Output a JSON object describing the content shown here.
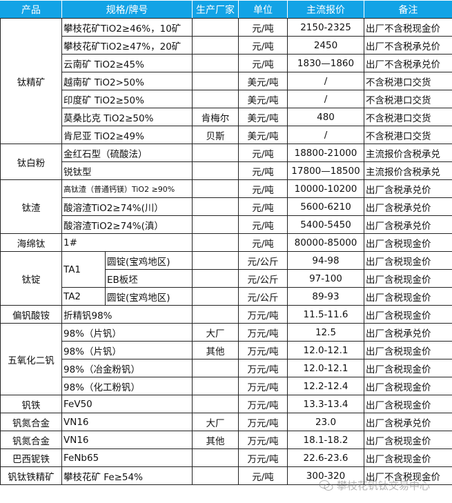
{
  "header": {
    "product": "产品",
    "spec": "规格/牌号",
    "maker": "生产厂家",
    "unit": "单位",
    "price": "主流报价",
    "note": "备注"
  },
  "colors": {
    "header_bg": "#12a3e6",
    "header_text": "#ffffff"
  },
  "groups": [
    {
      "product": "钛精矿",
      "items": [
        {
          "spec": "攀枝花矿TiO2≥46%，10矿",
          "maker": "",
          "unit": "元/吨",
          "price": "2150-2325",
          "note": "出厂不含税现金价"
        },
        {
          "spec": "攀枝花矿TiO2≥47%，20矿",
          "maker": "",
          "unit": "元/吨",
          "price": "2450",
          "note": "出厂不含税承兑价"
        },
        {
          "spec": "云南矿 TiO2≥45%",
          "maker": "",
          "unit": "元/吨",
          "price": "1830—1860",
          "note": "出厂不含税承兑价"
        },
        {
          "spec": "越南矿 TiO2>50%",
          "maker": "",
          "unit": "美元/吨",
          "price": "/",
          "note": "不含税港口交货"
        },
        {
          "spec": "印度矿 TiO2≥50%",
          "maker": "",
          "unit": "美元/吨",
          "price": "/",
          "note": "不含税港口交货"
        },
        {
          "spec": "莫桑比克 TiO2≥50%",
          "maker": "肯梅尔",
          "unit": "美元/吨",
          "price": "480",
          "note": "不含税港口交货"
        },
        {
          "spec": "肯尼亚 TiO2≥49%",
          "maker": "贝斯",
          "unit": "美元/吨",
          "price": "/",
          "note": "不含税港口交货"
        }
      ]
    },
    {
      "product": "钛白粉",
      "items": [
        {
          "spec": "金红石型（硫酸法）",
          "maker": "",
          "unit": "元/吨",
          "price": "18800-21000",
          "note": "主流报价含税承兑"
        },
        {
          "spec": "锐钛型",
          "maker": "",
          "unit": "元/吨",
          "price": "17800—18500",
          "note": "主流报价含税承兑"
        }
      ]
    },
    {
      "product": "钛渣",
      "items": [
        {
          "spec": "高钛渣（普通钙镁）TiO2 ≥90%",
          "maker": "",
          "unit": "元/吨",
          "price": "10000-10200",
          "note": "出厂含税承兑价",
          "small": true
        },
        {
          "spec": "酸溶渣TiO2≥74%(川）",
          "maker": "",
          "unit": "元/吨",
          "price": "5600-6210",
          "note": "出厂含税承兑价"
        },
        {
          "spec": "酸溶渣TiO2≥74%(滇）",
          "maker": "",
          "unit": "元/吨",
          "price": "5400-5450",
          "note": "出厂含税承兑价"
        }
      ]
    },
    {
      "product": "海绵钛",
      "items": [
        {
          "spec": "1#",
          "maker": "",
          "unit": "元/吨",
          "price": "80000-85000",
          "note": "出厂含税现金价"
        }
      ]
    },
    {
      "product": "钛锭",
      "items": [
        {
          "grade": "TA1",
          "spec": "圆锭(宝鸡地区)",
          "maker": "",
          "unit": "元/公斤",
          "price": "94-98",
          "note": "出厂含税现金价"
        },
        {
          "grade": "TA1",
          "spec": "EB板坯",
          "maker": "",
          "unit": "元/公斤",
          "price": "97-100",
          "note": "出厂含税现金价"
        },
        {
          "grade": "TA2",
          "spec": "圆锭(宝鸡地区)",
          "maker": "",
          "unit": "元/公斤",
          "price": "89-93",
          "note": "出厂含税现金价"
        }
      ]
    },
    {
      "product": "偏钒酸铵",
      "items": [
        {
          "spec": "折精钒98%",
          "maker": "",
          "unit": "万元/吨",
          "price": "11.5-11.6",
          "note": "出厂含税现金价"
        }
      ]
    },
    {
      "product": "五氧化二钒",
      "items": [
        {
          "spec": "98%（片钒）",
          "maker": "大厂",
          "unit": "万元/吨",
          "price": "12.5",
          "note": "出厂含税承兑价"
        },
        {
          "spec": "98%（片钒）",
          "maker": "其他",
          "unit": "万元/吨",
          "price": "12.0-12.1",
          "note": "出厂含税现金价"
        },
        {
          "spec": "98%（冶金粉钒）",
          "maker": "",
          "unit": "万元/吨",
          "price": "12.0-12.1",
          "note": "出厂含税现金价"
        },
        {
          "spec": "98%（化工粉钒）",
          "maker": "",
          "unit": "万元/吨",
          "price": "12.2-12.4",
          "note": "出厂含税现金价"
        }
      ]
    },
    {
      "product": "钒铁",
      "items": [
        {
          "spec": "FeV50",
          "maker": "",
          "unit": "万元/吨",
          "price": "13.3-13.4",
          "note": "出厂含税现金价"
        }
      ]
    },
    {
      "product": "钒氮合金",
      "items": [
        {
          "spec": "VN16",
          "maker": "大厂",
          "unit": "万元/吨",
          "price": "23.0",
          "note": "出厂含税承兑价"
        }
      ]
    },
    {
      "product": "钒氮合金",
      "items": [
        {
          "spec": "VN16",
          "maker": "其他",
          "unit": "万元/吨",
          "price": "18.1-18.2",
          "note": "出厂含税现金价"
        }
      ]
    },
    {
      "product": "巴西铌铁",
      "items": [
        {
          "spec": "FeNb65",
          "maker": "",
          "unit": "万元/吨",
          "price": "22.6-23.6",
          "note": "出厂含税现金价"
        }
      ]
    },
    {
      "product": "钒钛铁精矿",
      "items": [
        {
          "spec": "攀枝花矿 Fe≥54%",
          "maker": "",
          "unit": "元/吨",
          "price": "300-320",
          "note": "出厂不含税现金价"
        }
      ]
    }
  ],
  "watermark": {
    "text": "攀枝花钒钛交易中心",
    "icon": "wechat-icon"
  }
}
